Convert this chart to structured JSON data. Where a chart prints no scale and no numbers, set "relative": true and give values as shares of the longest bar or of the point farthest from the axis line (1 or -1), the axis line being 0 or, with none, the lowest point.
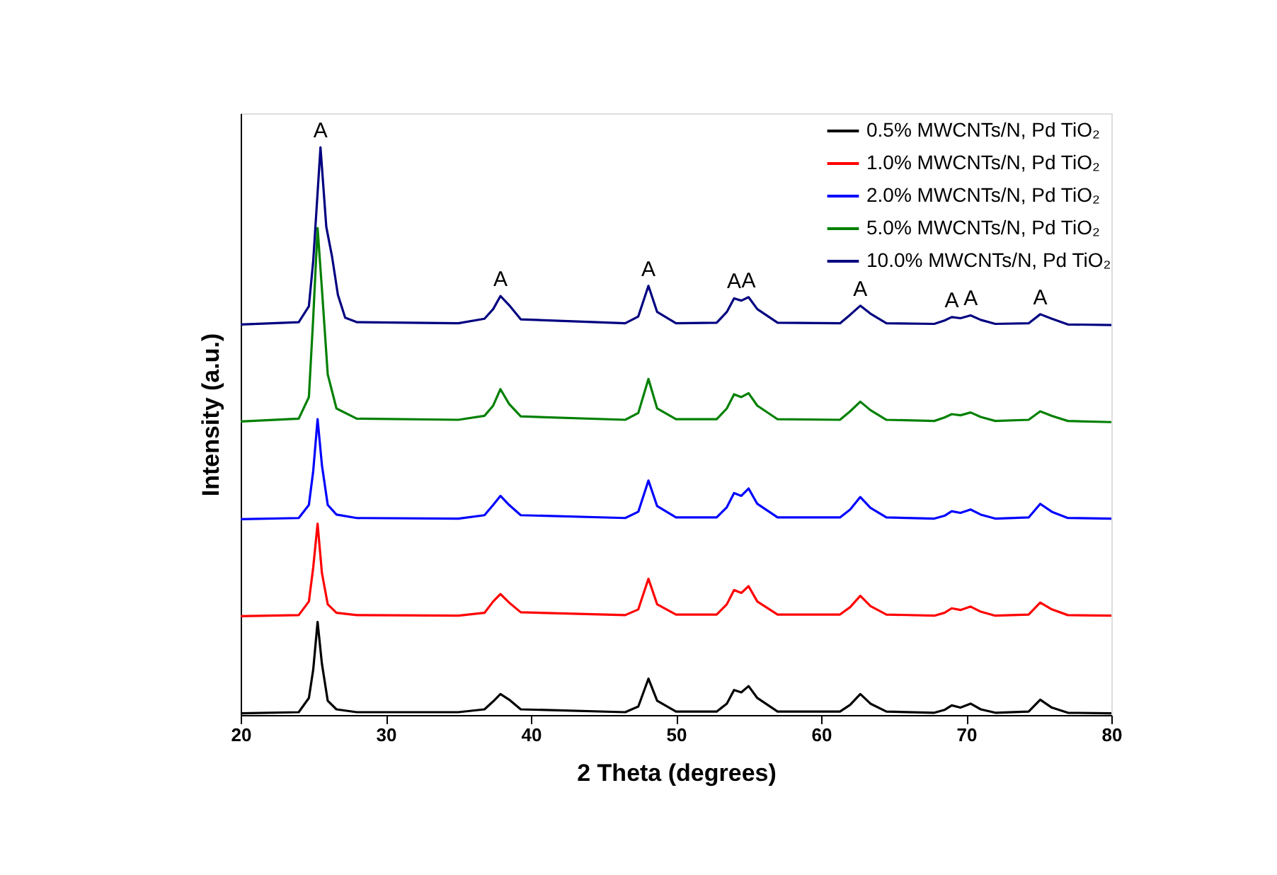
{
  "chart_data": {
    "type": "line",
    "relative": true,
    "xlabel": "2 Theta (degrees)",
    "ylabel": "Intensity (a.u.)",
    "xlim": [
      20,
      80
    ],
    "xticks": [
      20,
      30,
      40,
      50,
      60,
      70,
      80
    ],
    "grid": false,
    "legend": "top right",
    "marker": "none",
    "line_style": "solid",
    "x": [
      20,
      24,
      24.7,
      25.0,
      25.3,
      25.6,
      26.0,
      26.6,
      28,
      35,
      36.8,
      37.4,
      37.9,
      38.5,
      39.3,
      46.5,
      47.4,
      48.1,
      48.7,
      50,
      52.8,
      53.5,
      54.0,
      54.5,
      55.0,
      55.6,
      57,
      61.3,
      62.0,
      62.7,
      63.4,
      64.5,
      67.8,
      68.5,
      69.0,
      69.6,
      70.3,
      71.0,
      72,
      74.3,
      75.1,
      75.9,
      77,
      80
    ],
    "series": [
      {
        "name": "0.5% MWCNTs/N, Pd TiO₂",
        "color": "#000000",
        "values": [
          0.003,
          0.005,
          0.03,
          0.08,
          0.164,
          0.09,
          0.025,
          0.01,
          0.005,
          0.005,
          0.01,
          0.024,
          0.037,
          0.027,
          0.01,
          0.005,
          0.015,
          0.064,
          0.025,
          0.006,
          0.006,
          0.02,
          0.044,
          0.04,
          0.051,
          0.03,
          0.006,
          0.006,
          0.018,
          0.037,
          0.02,
          0.006,
          0.004,
          0.009,
          0.017,
          0.013,
          0.02,
          0.01,
          0.004,
          0.006,
          0.027,
          0.013,
          0.004,
          0.003
        ]
      },
      {
        "name": "1.0% MWCNTs/N, Pd TiO₂",
        "color": "#ff0000",
        "values": [
          0.174,
          0.176,
          0.2,
          0.26,
          0.337,
          0.25,
          0.195,
          0.18,
          0.176,
          0.175,
          0.18,
          0.2,
          0.213,
          0.198,
          0.181,
          0.176,
          0.186,
          0.24,
          0.195,
          0.177,
          0.177,
          0.195,
          0.22,
          0.215,
          0.227,
          0.2,
          0.177,
          0.177,
          0.19,
          0.21,
          0.192,
          0.177,
          0.175,
          0.18,
          0.188,
          0.185,
          0.191,
          0.182,
          0.175,
          0.177,
          0.198,
          0.186,
          0.176,
          0.175
        ]
      },
      {
        "name": "2.0% MWCNTs/N, Pd TiO₂",
        "color": "#0000ff",
        "values": [
          0.345,
          0.347,
          0.37,
          0.43,
          0.521,
          0.44,
          0.37,
          0.353,
          0.347,
          0.346,
          0.352,
          0.37,
          0.386,
          0.37,
          0.352,
          0.347,
          0.358,
          0.413,
          0.368,
          0.348,
          0.348,
          0.366,
          0.391,
          0.386,
          0.399,
          0.372,
          0.348,
          0.348,
          0.362,
          0.384,
          0.365,
          0.348,
          0.346,
          0.351,
          0.359,
          0.356,
          0.362,
          0.353,
          0.346,
          0.348,
          0.372,
          0.358,
          0.347,
          0.346
        ]
      },
      {
        "name": "5.0% MWCNTs/N, Pd TiO₂",
        "color": "#008000",
        "values": [
          0.517,
          0.522,
          0.56,
          0.7,
          0.858,
          0.75,
          0.6,
          0.54,
          0.522,
          0.52,
          0.527,
          0.545,
          0.574,
          0.548,
          0.526,
          0.52,
          0.532,
          0.592,
          0.54,
          0.521,
          0.521,
          0.54,
          0.565,
          0.56,
          0.567,
          0.545,
          0.521,
          0.52,
          0.535,
          0.552,
          0.537,
          0.52,
          0.518,
          0.524,
          0.53,
          0.528,
          0.533,
          0.525,
          0.518,
          0.52,
          0.535,
          0.527,
          0.518,
          0.516
        ]
      },
      {
        "name": "10.0% MWCNTs/N, Pd TiO₂",
        "color": "#000080",
        "x": [
          20,
          24,
          24.7,
          25.0,
          25.5,
          25.9,
          26.3,
          26.7,
          27.2,
          28,
          35,
          36.8,
          37.4,
          37.9,
          38.5,
          39.3,
          46.5,
          47.4,
          48.1,
          48.7,
          50,
          52.8,
          53.5,
          54.0,
          54.5,
          55.0,
          55.6,
          57,
          61.3,
          62.0,
          62.7,
          63.4,
          64.5,
          67.8,
          68.5,
          69.0,
          69.6,
          70.3,
          71.0,
          72,
          74.3,
          75.1,
          75.9,
          77,
          80
        ],
        "values": [
          0.688,
          0.692,
          0.72,
          0.8,
          1.0,
          0.86,
          0.807,
          0.74,
          0.7,
          0.692,
          0.69,
          0.698,
          0.715,
          0.738,
          0.722,
          0.697,
          0.69,
          0.702,
          0.756,
          0.71,
          0.69,
          0.691,
          0.71,
          0.734,
          0.73,
          0.736,
          0.715,
          0.691,
          0.69,
          0.705,
          0.721,
          0.707,
          0.69,
          0.689,
          0.695,
          0.701,
          0.699,
          0.704,
          0.696,
          0.689,
          0.69,
          0.706,
          0.698,
          0.688,
          0.687
        ]
      }
    ],
    "annotations": [
      {
        "text": "A",
        "x": 25.5,
        "y": 1.0
      },
      {
        "text": "A",
        "x": 37.9,
        "y": 0.738
      },
      {
        "text": "A",
        "x": 48.1,
        "y": 0.756
      },
      {
        "text": "A",
        "x": 54.0,
        "y": 0.734
      },
      {
        "text": "A",
        "x": 55.0,
        "y": 0.736
      },
      {
        "text": "A",
        "x": 62.7,
        "y": 0.721
      },
      {
        "text": "A",
        "x": 69.0,
        "y": 0.701
      },
      {
        "text": "A",
        "x": 70.3,
        "y": 0.704
      },
      {
        "text": "A",
        "x": 75.1,
        "y": 0.706
      }
    ]
  }
}
